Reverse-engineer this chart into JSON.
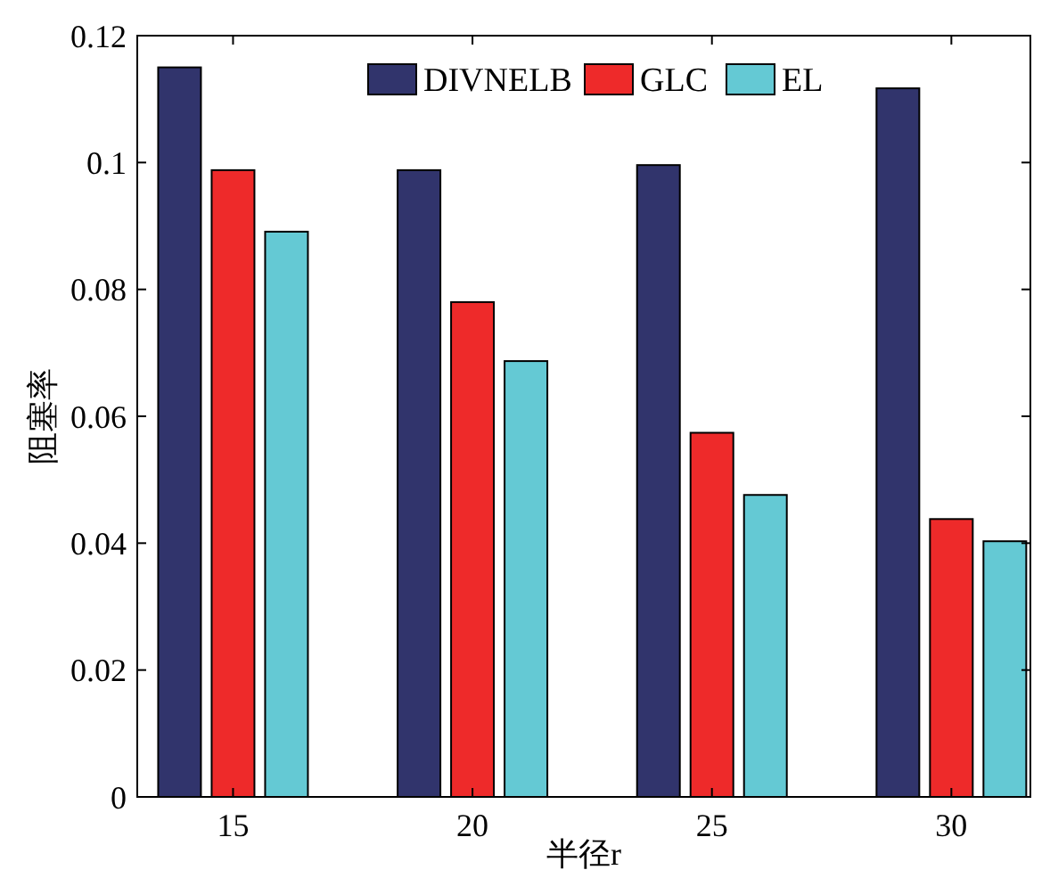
{
  "chart_data": {
    "type": "bar",
    "xlabel": "半径r",
    "ylabel": "阻塞率",
    "categories": [
      "15",
      "20",
      "25",
      "30"
    ],
    "series": [
      {
        "name": "DIVNELB",
        "color": "#31346c",
        "values": [
          0.115,
          0.0988,
          0.0996,
          0.1117
        ]
      },
      {
        "name": "GLC",
        "color": "#ee2a2a",
        "values": [
          0.0988,
          0.078,
          0.0574,
          0.0438
        ]
      },
      {
        "name": "EL",
        "color": "#64c9d4",
        "values": [
          0.0891,
          0.0687,
          0.0476,
          0.0403
        ]
      }
    ],
    "ylim": [
      0,
      0.12
    ],
    "yticks": [
      0,
      0.02,
      0.04,
      0.06,
      0.08,
      {
        "value": 0.1,
        "label": "0.1"
      },
      0.12
    ],
    "grid": false,
    "legend": "top"
  }
}
